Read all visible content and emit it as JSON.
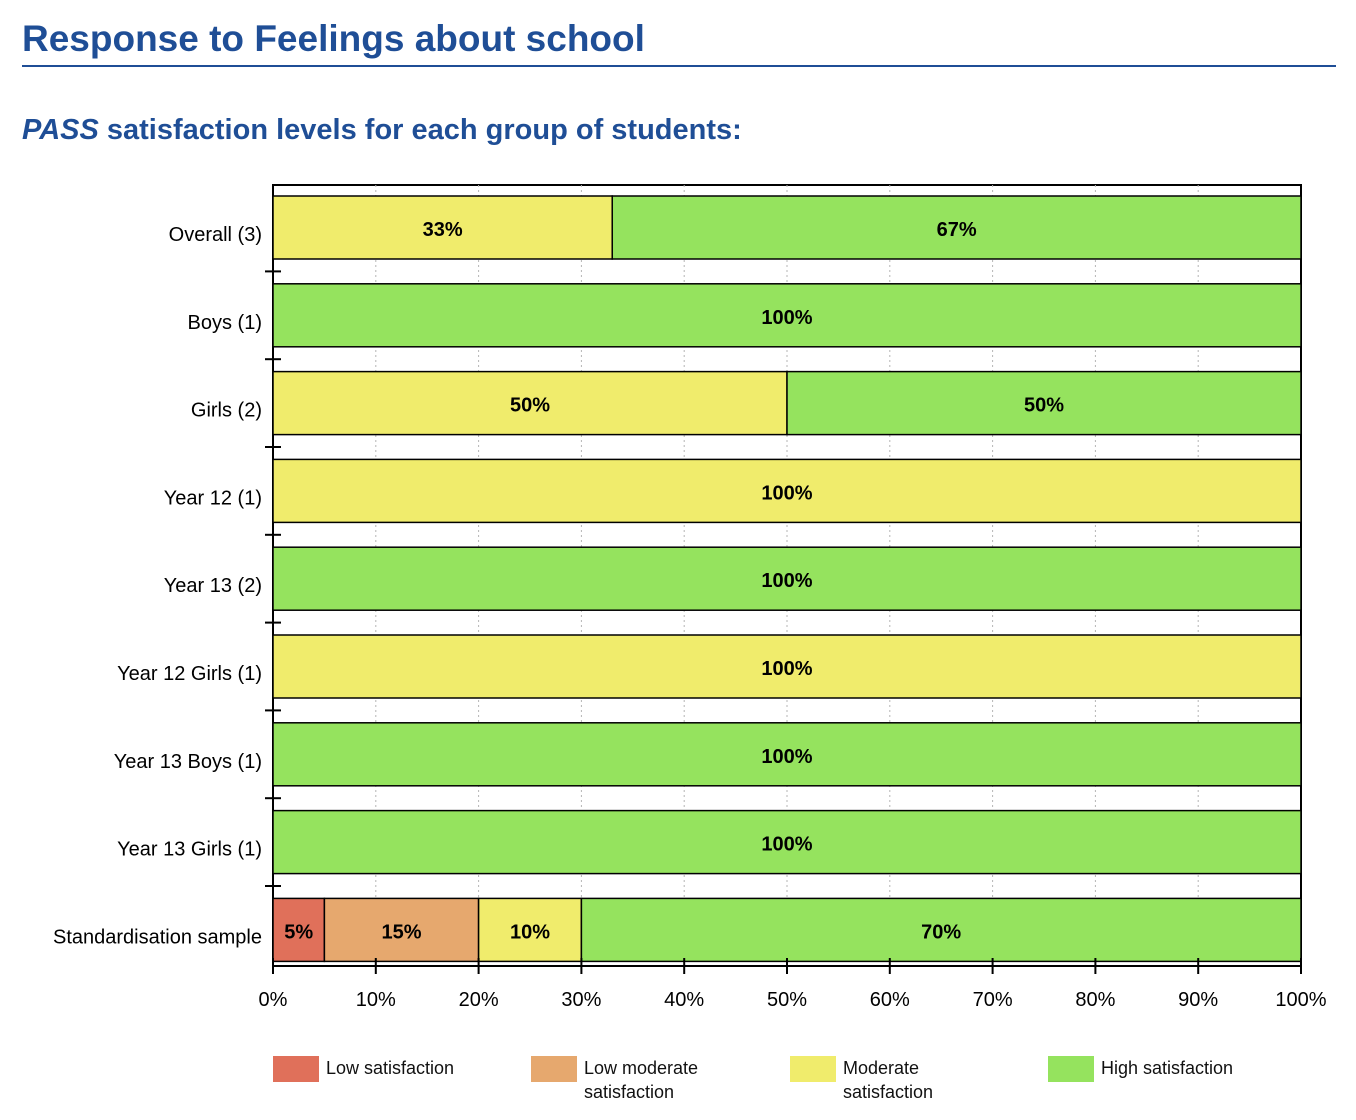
{
  "header": {
    "title": "Response to Feelings about school",
    "subtitle_emphasis": "PASS",
    "subtitle_rest": "satisfaction levels for each group of students:"
  },
  "colors": {
    "low": "#e0705a",
    "low_moderate": "#e6a86e",
    "moderate": "#f0ec6c",
    "high": "#95e35e",
    "heading": "#1f4e96"
  },
  "chart_data": {
    "type": "bar",
    "orientation": "horizontal",
    "stacked": true,
    "categories": [
      "Overall (3)",
      "Boys (1)",
      "Girls (2)",
      "Year 12 (1)",
      "Year 13 (2)",
      "Year 12 Girls (1)",
      "Year 13 Boys (1)",
      "Year 13 Girls (1)",
      "Standardisation sample"
    ],
    "series": [
      {
        "name": "Low satisfaction",
        "color": "#e0705a",
        "values": [
          0,
          0,
          0,
          0,
          0,
          0,
          0,
          0,
          5
        ]
      },
      {
        "name": "Low moderate satisfaction",
        "color": "#e6a86e",
        "values": [
          0,
          0,
          0,
          0,
          0,
          0,
          0,
          0,
          15
        ]
      },
      {
        "name": "Moderate satisfaction",
        "color": "#f0ec6c",
        "values": [
          33,
          0,
          50,
          100,
          0,
          100,
          0,
          0,
          10
        ]
      },
      {
        "name": "High satisfaction",
        "color": "#95e35e",
        "values": [
          67,
          100,
          50,
          0,
          100,
          0,
          100,
          100,
          70
        ]
      }
    ],
    "xlim": [
      0,
      100
    ],
    "x_ticks": [
      "0%",
      "10%",
      "20%",
      "30%",
      "40%",
      "50%",
      "60%",
      "70%",
      "80%",
      "90%",
      "100%"
    ],
    "grid": "vertical dashed",
    "legend_position": "bottom"
  },
  "legend": {
    "items": [
      {
        "label": "Low satisfaction",
        "color": "#e0705a"
      },
      {
        "label": "Low moderate\nsatisfaction",
        "color": "#e6a86e"
      },
      {
        "label": "Moderate\nsatisfaction",
        "color": "#f0ec6c"
      },
      {
        "label": "High satisfaction",
        "color": "#95e35e"
      }
    ]
  }
}
